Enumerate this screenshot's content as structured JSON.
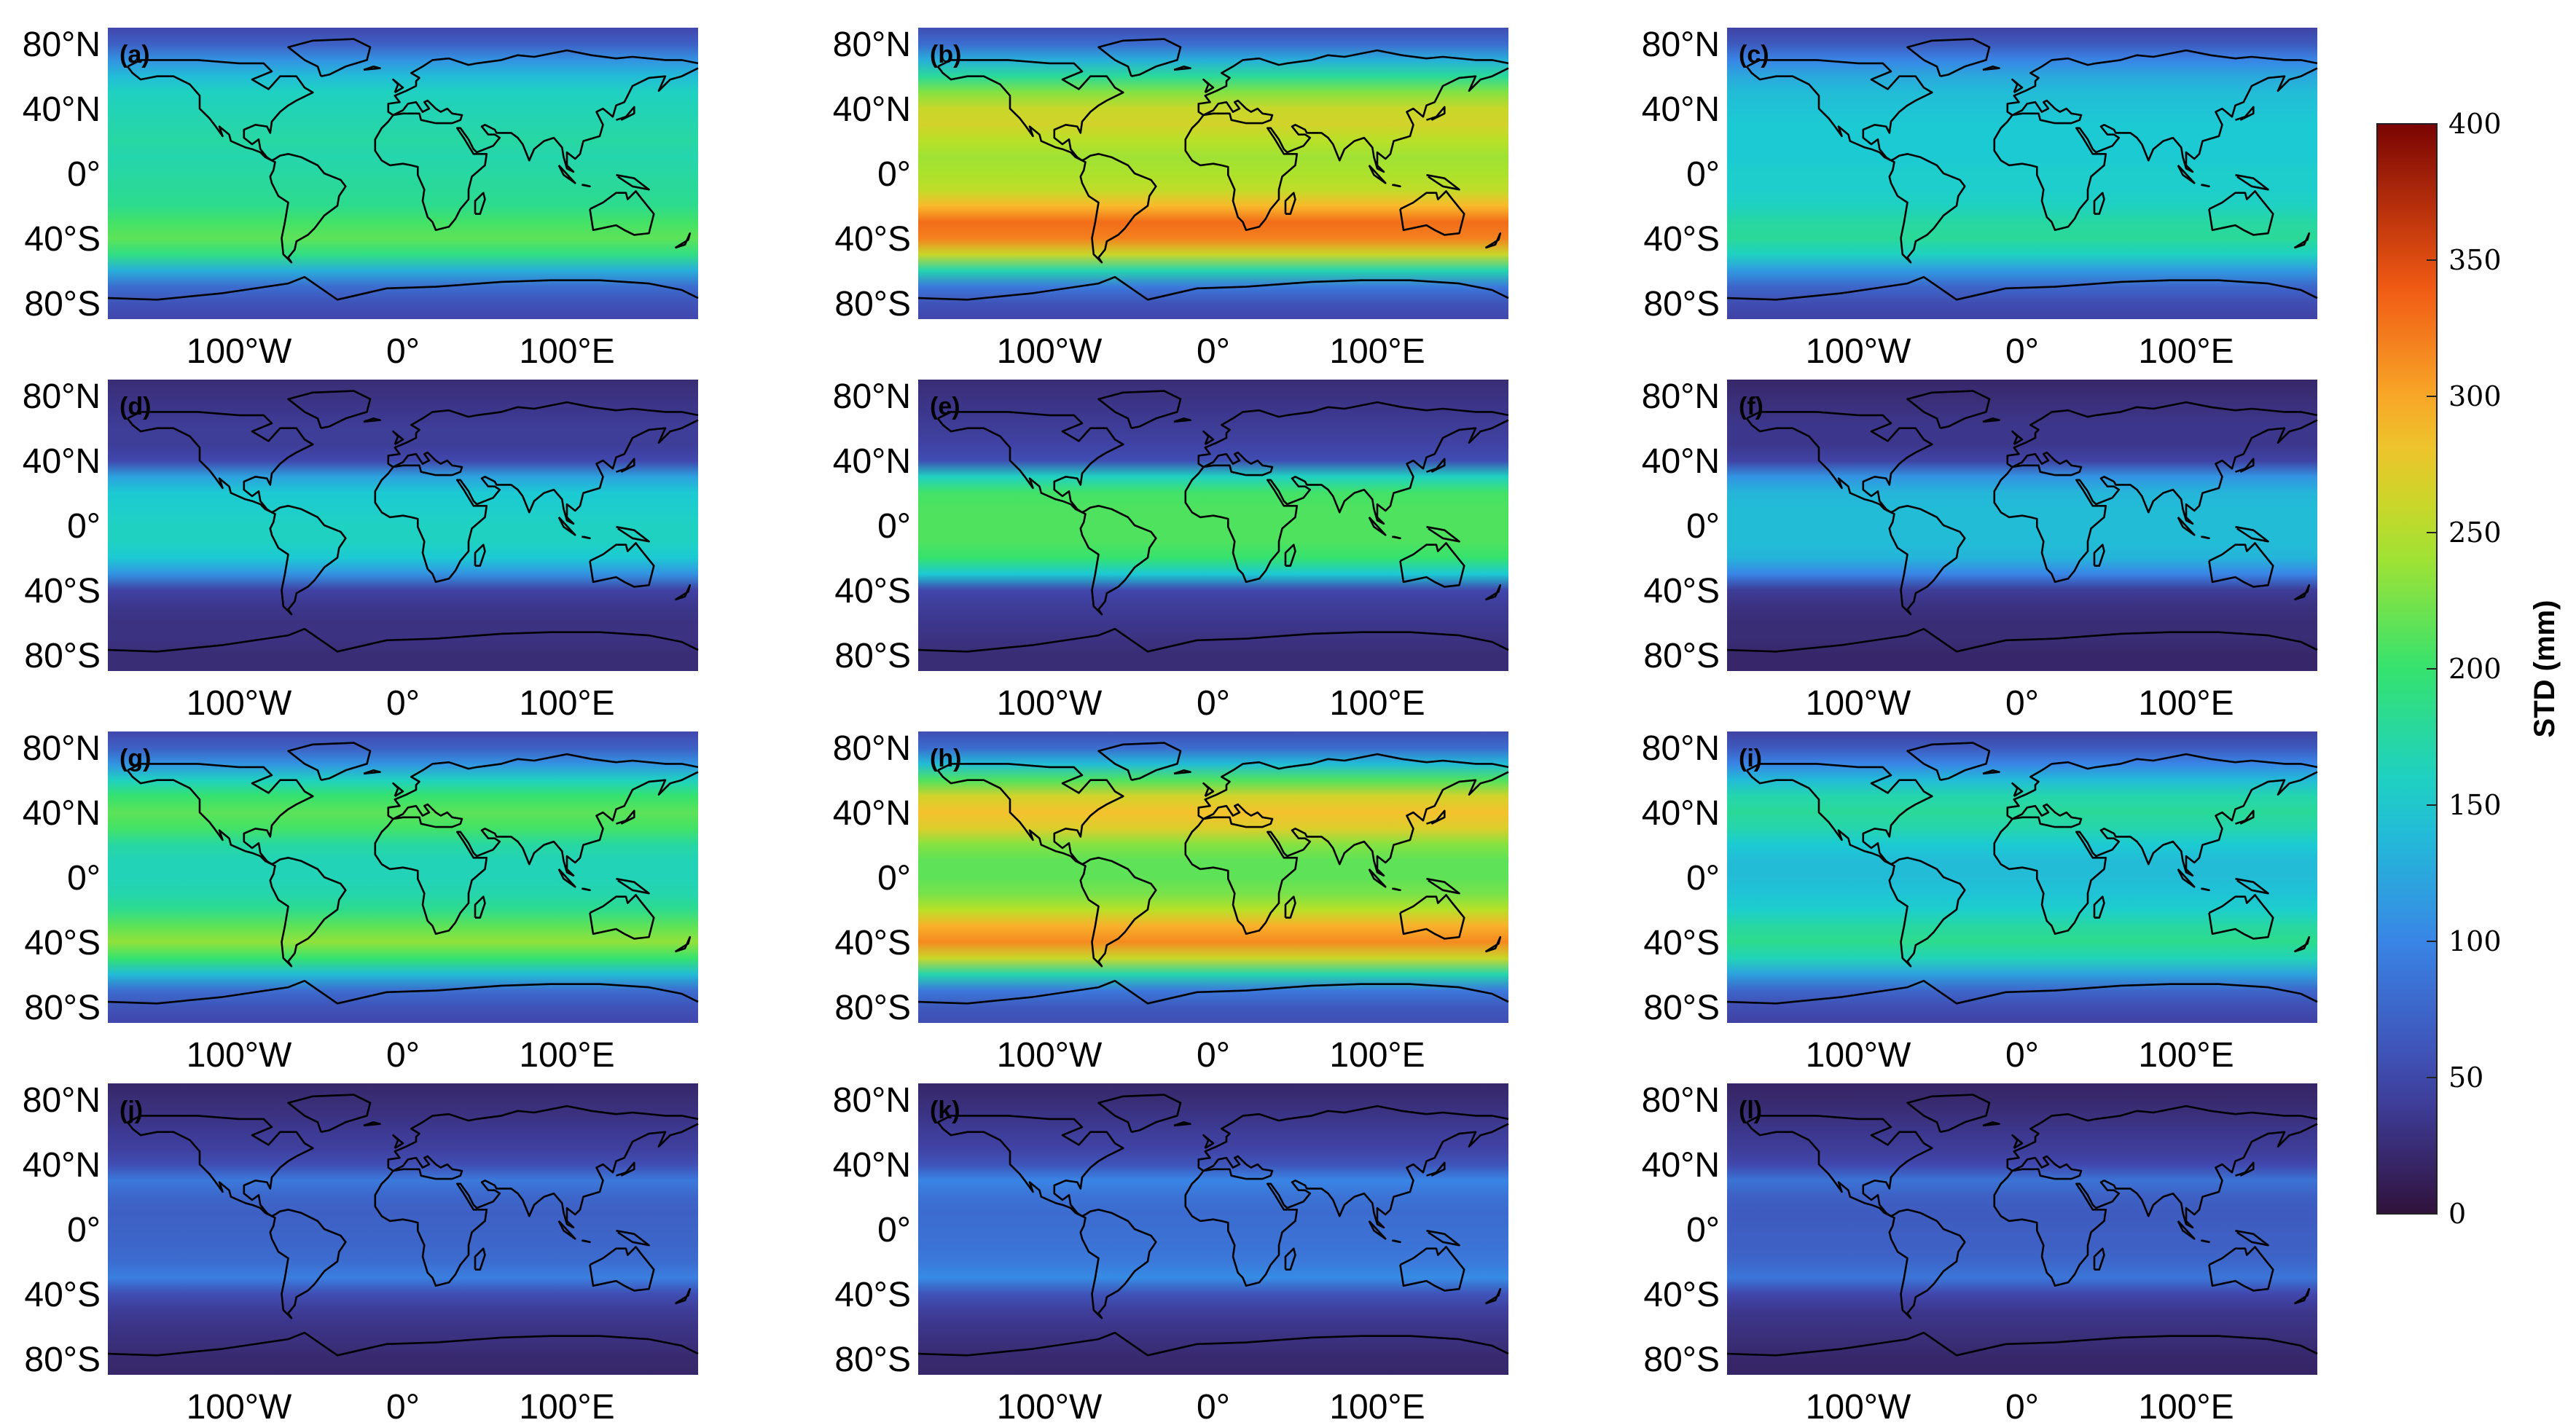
{
  "chart_data": {
    "type": "heatmap",
    "subtype": "global-map-grid",
    "colormap": "jet",
    "value_range": [
      0,
      400
    ],
    "colorbar": {
      "title": "STD (mm)",
      "ticks": [
        0,
        50,
        100,
        150,
        200,
        250,
        300,
        350,
        400
      ],
      "placement": "right"
    },
    "x_ticks": [
      "100°W",
      "0°",
      "100°E"
    ],
    "y_ticks": [
      "80°N",
      "40°N",
      "0°",
      "40°S",
      "80°S"
    ],
    "lat_profile_lats": [
      90,
      80,
      70,
      60,
      50,
      40,
      30,
      20,
      10,
      0,
      -10,
      -20,
      -30,
      -40,
      -50,
      -60,
      -70,
      -80,
      -90
    ],
    "panels": [
      {
        "label": "(a)",
        "row": 0,
        "col": 0,
        "lat_profile_std_mm": [
          50,
          70,
          110,
          140,
          160,
          165,
          170,
          175,
          170,
          175,
          180,
          185,
          205,
          215,
          190,
          130,
          80,
          60,
          50
        ]
      },
      {
        "label": "(b)",
        "row": 0,
        "col": 1,
        "lat_profile_std_mm": [
          55,
          80,
          130,
          180,
          230,
          260,
          265,
          250,
          240,
          245,
          255,
          290,
          330,
          320,
          260,
          170,
          90,
          60,
          50
        ]
      },
      {
        "label": "(c)",
        "row": 0,
        "col": 2,
        "lat_profile_std_mm": [
          45,
          65,
          100,
          125,
          140,
          145,
          150,
          150,
          150,
          155,
          155,
          160,
          175,
          180,
          160,
          115,
          75,
          55,
          45
        ]
      },
      {
        "label": "(d)",
        "row": 1,
        "col": 0,
        "lat_profile_std_mm": [
          25,
          30,
          35,
          40,
          40,
          50,
          120,
          150,
          155,
          160,
          160,
          150,
          110,
          45,
          35,
          30,
          30,
          25,
          25
        ]
      },
      {
        "label": "(e)",
        "row": 1,
        "col": 1,
        "lat_profile_std_mm": [
          25,
          30,
          35,
          40,
          45,
          55,
          160,
          205,
          210,
          210,
          210,
          200,
          150,
          50,
          40,
          35,
          30,
          25,
          25
        ]
      },
      {
        "label": "(f)",
        "row": 1,
        "col": 2,
        "lat_profile_std_mm": [
          20,
          25,
          30,
          35,
          35,
          45,
          110,
          135,
          140,
          140,
          140,
          135,
          100,
          40,
          30,
          25,
          25,
          20,
          20
        ]
      },
      {
        "label": "(g)",
        "row": 2,
        "col": 0,
        "lat_profile_std_mm": [
          50,
          70,
          110,
          160,
          200,
          215,
          205,
          175,
          165,
          165,
          170,
          185,
          215,
          235,
          200,
          140,
          80,
          60,
          50
        ]
      },
      {
        "label": "(h)",
        "row": 2,
        "col": 1,
        "lat_profile_std_mm": [
          55,
          80,
          140,
          210,
          265,
          285,
          270,
          230,
          215,
          215,
          225,
          250,
          295,
          315,
          260,
          170,
          90,
          65,
          55
        ]
      },
      {
        "label": "(i)",
        "row": 2,
        "col": 2,
        "lat_profile_std_mm": [
          45,
          65,
          100,
          140,
          170,
          180,
          170,
          150,
          140,
          140,
          145,
          155,
          175,
          185,
          165,
          120,
          75,
          55,
          45
        ]
      },
      {
        "label": "(j)",
        "row": 3,
        "col": 0,
        "lat_profile_std_mm": [
          20,
          25,
          30,
          38,
          42,
          55,
          90,
          75,
          70,
          72,
          75,
          80,
          95,
          55,
          40,
          32,
          28,
          22,
          20
        ]
      },
      {
        "label": "(k)",
        "row": 3,
        "col": 1,
        "lat_profile_std_mm": [
          20,
          25,
          32,
          40,
          45,
          60,
          100,
          85,
          80,
          82,
          85,
          90,
          105,
          60,
          42,
          34,
          28,
          22,
          20
        ]
      },
      {
        "label": "(l)",
        "row": 3,
        "col": 2,
        "lat_profile_std_mm": [
          18,
          22,
          28,
          35,
          40,
          50,
          85,
          70,
          66,
          68,
          70,
          75,
          88,
          50,
          36,
          30,
          25,
          20,
          18
        ]
      }
    ]
  }
}
